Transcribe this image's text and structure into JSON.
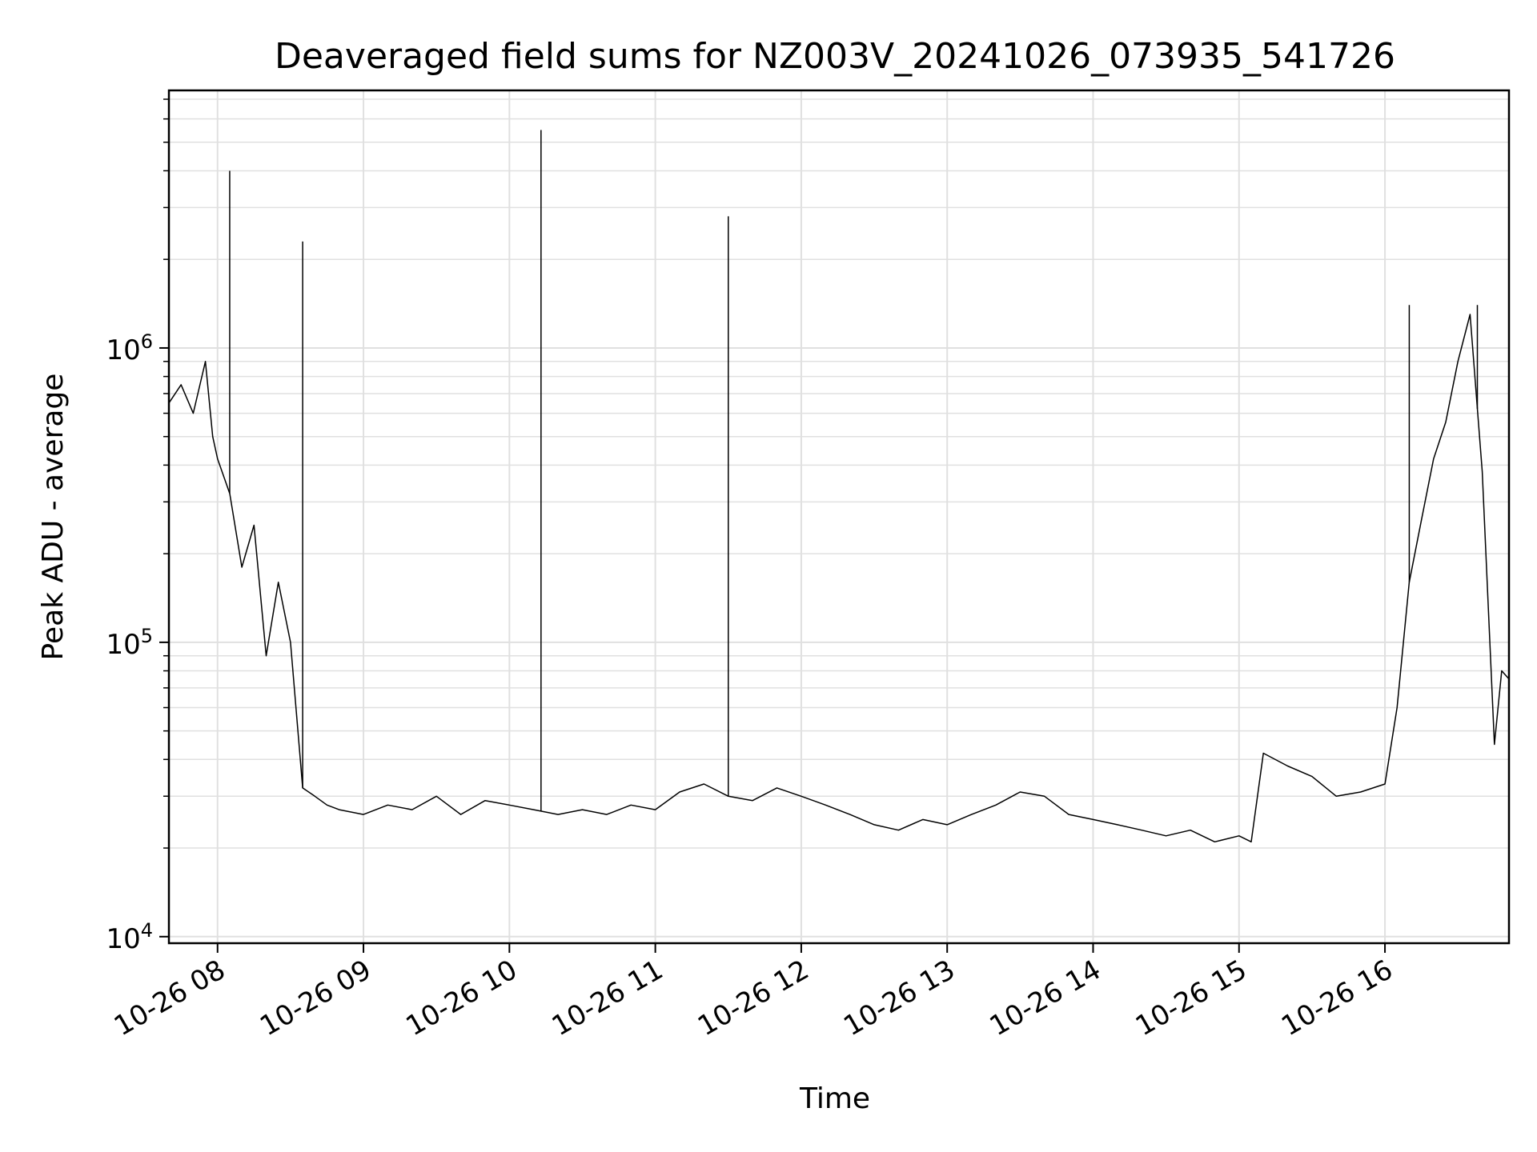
{
  "chart_data": {
    "type": "line",
    "title": "Deaveraged field sums for NZ003V_20241026_073935_541726",
    "xlabel": "Time",
    "ylabel": "Peak ADU - average",
    "y_scale": "log",
    "grid": true,
    "legend": "none",
    "line_color": "#000000",
    "grid_color": "#e0e0e0",
    "xlim": [
      "2024-10-26T07:40",
      "2024-10-26T16:51"
    ],
    "ylim": [
      9500,
      7500000
    ],
    "x_ticks": [
      {
        "time": "2024-10-26T08:00",
        "label": "10-26 08"
      },
      {
        "time": "2024-10-26T09:00",
        "label": "10-26 09"
      },
      {
        "time": "2024-10-26T10:00",
        "label": "10-26 10"
      },
      {
        "time": "2024-10-26T11:00",
        "label": "10-26 11"
      },
      {
        "time": "2024-10-26T12:00",
        "label": "10-26 12"
      },
      {
        "time": "2024-10-26T13:00",
        "label": "10-26 13"
      },
      {
        "time": "2024-10-26T14:00",
        "label": "10-26 14"
      },
      {
        "time": "2024-10-26T15:00",
        "label": "10-26 15"
      },
      {
        "time": "2024-10-26T16:00",
        "label": "10-26 16"
      }
    ],
    "y_ticks": [
      {
        "value": 10000,
        "base": "10",
        "exp": "4"
      },
      {
        "value": 100000,
        "base": "10",
        "exp": "5"
      },
      {
        "value": 1000000,
        "base": "10",
        "exp": "6"
      }
    ],
    "x": [
      "2024-10-26T07:40",
      "2024-10-26T07:45",
      "2024-10-26T07:50",
      "2024-10-26T07:55",
      "2024-10-26T07:58",
      "2024-10-26T08:00",
      "2024-10-26T08:05",
      "2024-10-26T08:10",
      "2024-10-26T08:15",
      "2024-10-26T08:20",
      "2024-10-26T08:25",
      "2024-10-26T08:30",
      "2024-10-26T08:35",
      "2024-10-26T08:40",
      "2024-10-26T08:45",
      "2024-10-26T08:50",
      "2024-10-26T09:00",
      "2024-10-26T09:10",
      "2024-10-26T09:20",
      "2024-10-26T09:30",
      "2024-10-26T09:40",
      "2024-10-26T09:50",
      "2024-10-26T10:00",
      "2024-10-26T10:10",
      "2024-10-26T10:20",
      "2024-10-26T10:30",
      "2024-10-26T10:40",
      "2024-10-26T10:50",
      "2024-10-26T11:00",
      "2024-10-26T11:10",
      "2024-10-26T11:20",
      "2024-10-26T11:30",
      "2024-10-26T11:40",
      "2024-10-26T11:50",
      "2024-10-26T12:00",
      "2024-10-26T12:10",
      "2024-10-26T12:20",
      "2024-10-26T12:30",
      "2024-10-26T12:40",
      "2024-10-26T12:50",
      "2024-10-26T13:00",
      "2024-10-26T13:10",
      "2024-10-26T13:20",
      "2024-10-26T13:30",
      "2024-10-26T13:40",
      "2024-10-26T13:50",
      "2024-10-26T14:00",
      "2024-10-26T14:10",
      "2024-10-26T14:20",
      "2024-10-26T14:30",
      "2024-10-26T14:40",
      "2024-10-26T14:50",
      "2024-10-26T15:00",
      "2024-10-26T15:05",
      "2024-10-26T15:10",
      "2024-10-26T15:20",
      "2024-10-26T15:30",
      "2024-10-26T15:40",
      "2024-10-26T15:50",
      "2024-10-26T16:00",
      "2024-10-26T16:05",
      "2024-10-26T16:10",
      "2024-10-26T16:15",
      "2024-10-26T16:20",
      "2024-10-26T16:25",
      "2024-10-26T16:30",
      "2024-10-26T16:35",
      "2024-10-26T16:40",
      "2024-10-26T16:45",
      "2024-10-26T16:48",
      "2024-10-26T16:51"
    ],
    "y": [
      650000,
      750000,
      600000,
      900000,
      500000,
      420000,
      320000,
      180000,
      250000,
      90000,
      160000,
      100000,
      32000,
      30000,
      28000,
      27000,
      26000,
      28000,
      27000,
      30000,
      26000,
      29000,
      28000,
      27000,
      26000,
      27000,
      26000,
      28000,
      27000,
      31000,
      33000,
      30000,
      29000,
      32000,
      30000,
      28000,
      26000,
      24000,
      23000,
      25000,
      24000,
      26000,
      28000,
      31000,
      30000,
      26000,
      25000,
      24000,
      23000,
      22000,
      23000,
      21000,
      22000,
      21000,
      42000,
      38000,
      35000,
      30000,
      31000,
      33000,
      60000,
      160000,
      260000,
      420000,
      560000,
      900000,
      1300000,
      380000,
      45000,
      80000,
      75000
    ],
    "spikes": [
      {
        "x": "2024-10-26T08:05",
        "y": 4000000
      },
      {
        "x": "2024-10-26T08:35",
        "y": 2300000
      },
      {
        "x": "2024-10-26T10:13",
        "y": 5500000
      },
      {
        "x": "2024-10-26T11:30",
        "y": 2800000
      },
      {
        "x": "2024-10-26T16:10",
        "y": 1400000
      },
      {
        "x": "2024-10-26T16:38",
        "y": 1400000
      }
    ]
  }
}
